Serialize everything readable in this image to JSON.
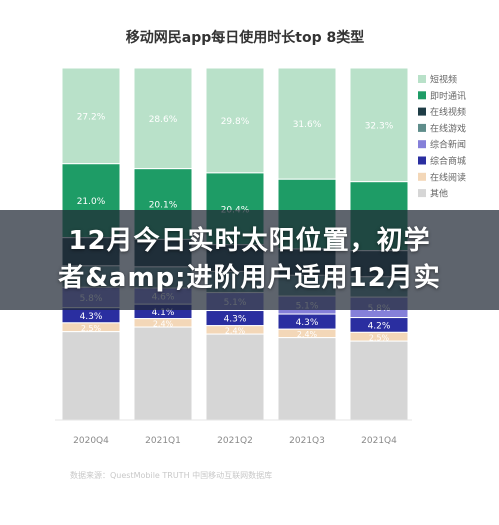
{
  "chart_data": {
    "type": "bar",
    "stacked": true,
    "title": "移动网民app每日使用时长top 8类型",
    "categories": [
      "2020Q4",
      "2021Q1",
      "2021Q2",
      "2021Q3",
      "2021Q4"
    ],
    "ylim": [
      0,
      100
    ],
    "series": [
      {
        "name": "短视频",
        "color": "#b9e1c9",
        "values": [
          27.2,
          28.6,
          29.8,
          31.6,
          32.3
        ],
        "labels": [
          "27.2%",
          "28.6%",
          "29.8%",
          "31.6%",
          "32.3%"
        ]
      },
      {
        "name": "即时通讯",
        "color": "#1e9c66",
        "values": [
          21.0,
          20.1,
          20.4,
          19.8,
          19.6
        ],
        "labels": [
          "21.0%",
          "20.1%",
          "20.4%",
          "",
          ""
        ]
      },
      {
        "name": "在线视频",
        "color": "#1f3d46",
        "values": [
          8.0,
          7.8,
          7.6,
          7.5,
          7.4
        ],
        "labels": [
          "",
          "",
          "",
          "",
          ""
        ]
      },
      {
        "name": "在线游戏",
        "color": "#5f8d8b",
        "values": [
          6.1,
          6.0,
          6.0,
          5.9,
          5.8
        ],
        "labels": [
          "",
          "",
          "",
          "",
          ""
        ]
      },
      {
        "name": "综合新闻",
        "color": "#8580d9",
        "values": [
          5.8,
          4.6,
          5.1,
          5.1,
          5.8
        ],
        "labels": [
          "5.8%",
          "4.6%",
          "5.1%",
          "5.1%",
          "5.8%"
        ]
      },
      {
        "name": "综合商城",
        "color": "#2a2ea0",
        "values": [
          4.3,
          4.1,
          4.3,
          4.3,
          4.2
        ],
        "labels": [
          "4.3%",
          "4.1%",
          "4.3%",
          "4.3%",
          "4.2%"
        ]
      },
      {
        "name": "在线阅读",
        "color": "#f3d7b8",
        "values": [
          2.5,
          2.4,
          2.4,
          2.4,
          2.5
        ],
        "labels": [
          "2.5%",
          "2.4%",
          "2.4%",
          "2.4%",
          "2.5%"
        ]
      },
      {
        "name": "其他",
        "color": "#d6d6d6",
        "values": [
          25.1,
          26.4,
          24.4,
          23.4,
          22.4
        ],
        "labels": [
          "",
          "",
          "",
          "",
          ""
        ]
      }
    ],
    "legend_position": "right",
    "grid": false
  },
  "source_note": "数据来源：QuestMobile  TRUTH  中国移动互联网数据库",
  "overlay_lines": [
    "12月今日实时太阳位置，初学",
    "者&amp;进阶用户适用12月实"
  ],
  "label_light_color": "#ffffff"
}
